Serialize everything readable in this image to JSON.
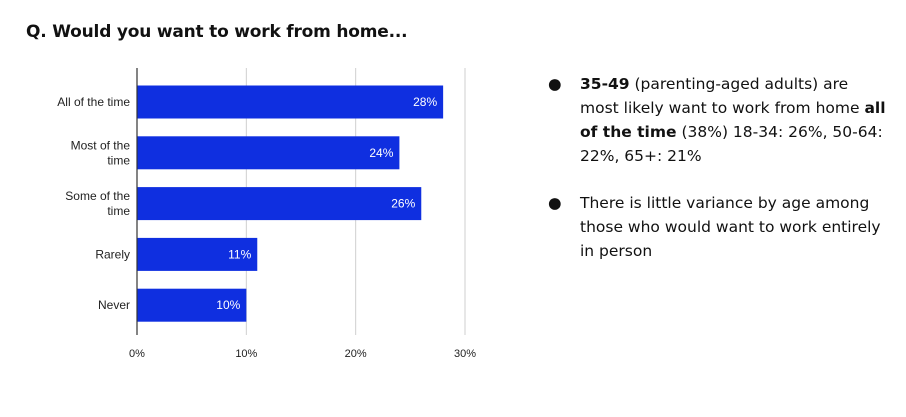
{
  "title": {
    "prefix": "Q.",
    "text": "Would you want to work from home..."
  },
  "chart_data": {
    "type": "bar",
    "orientation": "horizontal",
    "categories": [
      [
        "All of the time"
      ],
      [
        "Most of the",
        "time"
      ],
      [
        "Some of the",
        "time"
      ],
      [
        "Rarely"
      ],
      [
        "Never"
      ]
    ],
    "values": [
      28,
      24,
      26,
      11,
      10
    ],
    "data_labels": [
      "28%",
      "24%",
      "26%",
      "11%",
      "10%"
    ],
    "xlim": [
      0,
      30
    ],
    "xticks": [
      0,
      10,
      20,
      30
    ],
    "xtick_labels": [
      "0%",
      "10%",
      "20%",
      "30%"
    ],
    "bar_color": "#0f2fe0",
    "grid": true
  },
  "notes": {
    "bullet": "●",
    "items": [
      {
        "parts": [
          {
            "text": "35-49",
            "bold": true
          },
          {
            "text": " (parenting-aged adults) are most likely want to work from home ",
            "bold": false
          },
          {
            "text": "all of the time",
            "bold": true
          },
          {
            "text": " (38%) 18-34: 26%, 50-64: 22%, 65+: 21%",
            "bold": false
          }
        ]
      },
      {
        "parts": [
          {
            "text": "There is little variance by age among those who would want to work entirely in person",
            "bold": false
          }
        ]
      }
    ]
  }
}
